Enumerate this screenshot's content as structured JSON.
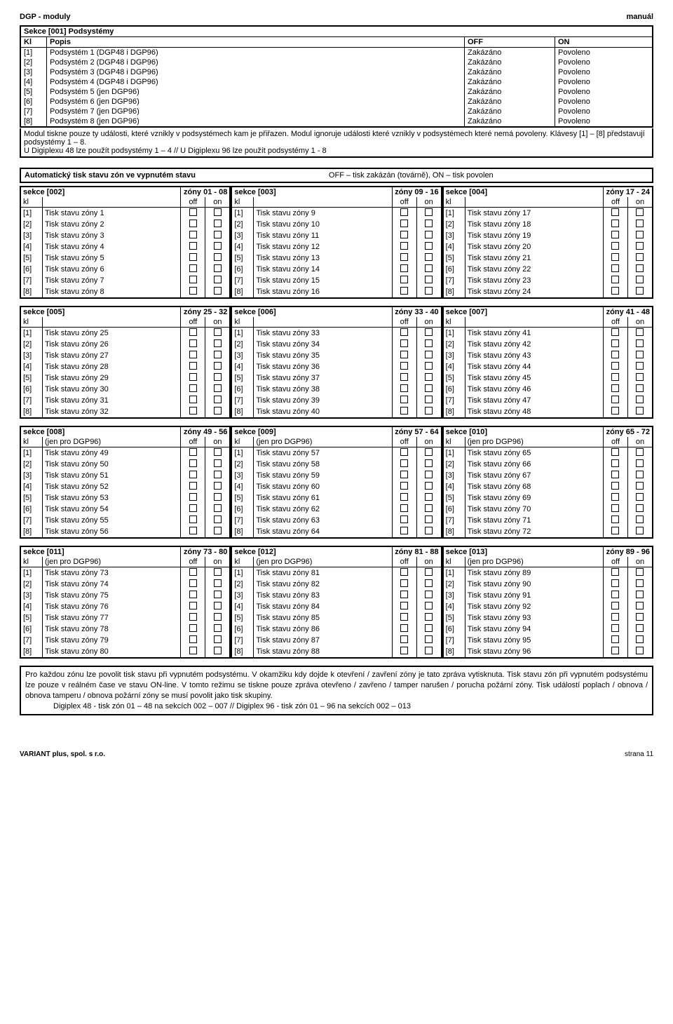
{
  "header": {
    "left": "DGP - moduly",
    "right": "manuál"
  },
  "sec001": {
    "title": "Sekce [001]  Podsystémy",
    "cols": {
      "kl": "Kl",
      "popis": "Popis",
      "off": "OFF",
      "on": "ON"
    },
    "rows": [
      {
        "k": "[1]",
        "p": "Podsystém 1 (DGP48 i DGP96)",
        "o": "Zakázáno",
        "n": "Povoleno"
      },
      {
        "k": "[2]",
        "p": "Podsystém 2 (DGP48 i DGP96)",
        "o": "Zakázáno",
        "n": "Povoleno"
      },
      {
        "k": "[3]",
        "p": "Podsystém 3 (DGP48 i DGP96)",
        "o": "Zakázáno",
        "n": "Povoleno"
      },
      {
        "k": "[4]",
        "p": "Podsystém 4 (DGP48 i DGP96)",
        "o": "Zakázáno",
        "n": "Povoleno"
      },
      {
        "k": "[5]",
        "p": "Podsystém 5 (jen DGP96)",
        "o": "Zakázáno",
        "n": "Povoleno"
      },
      {
        "k": "[6]",
        "p": "Podsystém 6 (jen DGP96)",
        "o": "Zakázáno",
        "n": "Povoleno"
      },
      {
        "k": "[7]",
        "p": "Podsystém 7 (jen DGP96)",
        "o": "Zakázáno",
        "n": "Povoleno"
      },
      {
        "k": "[8]",
        "p": "Podsystém 8 (jen DGP96)",
        "o": "Zakázáno",
        "n": "Povoleno"
      }
    ],
    "foot": "Modul tiskne pouze ty události, které vznikly v podsystémech kam je přiřazen. Modul ignoruje události které vznikly v podsystémech které nemá povoleny. Klávesy [1] – [8] představují podsystémy 1 – 8.\nU Digiplexu 48 lze použít podsystémy 1 – 4   //   U Digiplexu 96 lze použít podsystémy 1 - 8"
  },
  "banner": {
    "left": "Automatický tisk stavu zón ve vypnutém stavu",
    "right": "OFF – tisk zakázán (továrně), ON – tisk povolen"
  },
  "terms": {
    "kl": "kl",
    "off": "off",
    "on": "on",
    "prefix": "Tisk stavu zóny",
    "jen": "(jen pro DGP96)"
  },
  "groups": [
    {
      "sections": [
        {
          "id": "002",
          "range": "01 - 08",
          "start": 1
        },
        {
          "id": "003",
          "range": "09 - 16",
          "start": 9
        },
        {
          "id": "004",
          "range": "17 - 24",
          "start": 17
        }
      ],
      "jen": false
    },
    {
      "sections": [
        {
          "id": "005",
          "range": "25 - 32",
          "start": 25
        },
        {
          "id": "006",
          "range": "33 - 40",
          "start": 33
        },
        {
          "id": "007",
          "range": "41 - 48",
          "start": 41
        }
      ],
      "jen": false
    },
    {
      "sections": [
        {
          "id": "008",
          "range": "49 - 56",
          "start": 49
        },
        {
          "id": "009",
          "range": "57 - 64",
          "start": 57
        },
        {
          "id": "010",
          "range": "65 - 72",
          "start": 65
        }
      ],
      "jen": true
    },
    {
      "sections": [
        {
          "id": "011",
          "range": "73 - 80",
          "start": 73
        },
        {
          "id": "012",
          "range": "81 - 88",
          "start": 81
        },
        {
          "id": "013",
          "range": "89 - 96",
          "start": 89
        }
      ],
      "jen": true
    }
  ],
  "note": {
    "p1": "Pro každou zónu lze povolit tisk stavu při vypnutém podsystému. V okamžiku kdy dojde k otevření / zavření zóny je tato zpráva vytisknuta. Tisk stavu zón při vypnutém podsystému lze pouze v reálném čase ve stavu ON-line. V tomto režimu se tiskne pouze zpráva otevřeno / zavřeno / tamper narušen / porucha požární zóny. Tisk událostí poplach / obnova / obnova tamperu / obnova požární zóny  se musí povolit jako tisk skupiny.",
    "p2": "Digiplex 48 - tisk zón 01 – 48 na sekcích 002 – 007   //   Digiplex 96 - tisk zón 01 – 96 na sekcích 002 – 013"
  },
  "footer": {
    "left": "VARIANT plus, spol. s r.o.",
    "right": "strana 11"
  }
}
